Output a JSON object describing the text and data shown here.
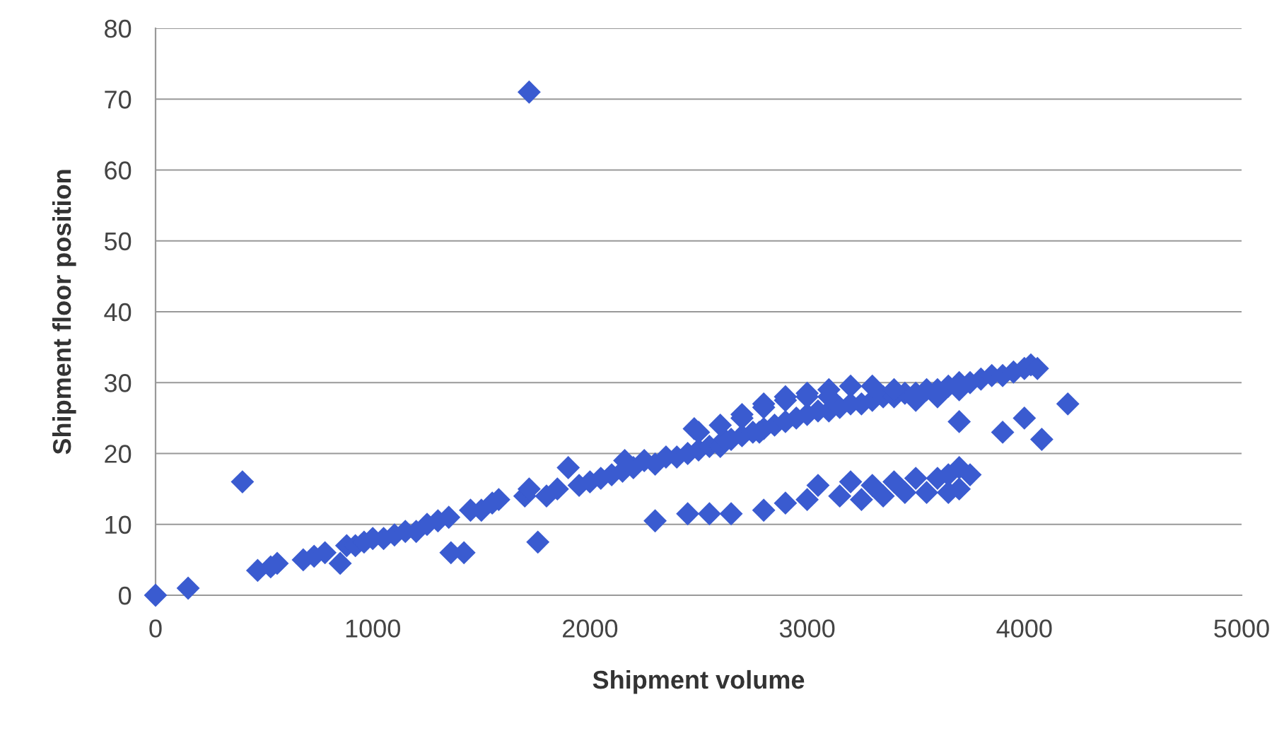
{
  "chart_data": {
    "type": "scatter",
    "xlabel": "Shipment volume",
    "ylabel": "Shipment floor position",
    "marker": "diamond",
    "grid": "y",
    "xlim": [
      0,
      5000
    ],
    "ylim": [
      0,
      80
    ],
    "xticks": [
      0,
      1000,
      2000,
      3000,
      4000,
      5000
    ],
    "yticks": [
      0,
      10,
      20,
      30,
      40,
      50,
      60,
      70,
      80
    ],
    "series": [
      {
        "color": "#3a5bd0",
        "x": [
          0,
          150,
          400,
          1720,
          470,
          530,
          560,
          680,
          730,
          780,
          850,
          880,
          920,
          960,
          1000,
          1050,
          1100,
          1150,
          1200,
          1250,
          1300,
          1350,
          1360,
          1420,
          1450,
          1500,
          1550,
          1580,
          1700,
          1720,
          1760,
          1800,
          1850,
          1900,
          1950,
          2000,
          2050,
          2100,
          2150,
          2160,
          2200,
          2250,
          2300,
          2350,
          2400,
          2450,
          2480,
          2500,
          2550,
          2600,
          2620,
          2650,
          2700,
          2750,
          2780,
          2800,
          2850,
          2900,
          2950,
          3000,
          3050,
          3100,
          3150,
          3200,
          3250,
          3300,
          3350,
          3400,
          3450,
          3500,
          3550,
          3600,
          3650,
          3700,
          3750,
          3800,
          3850,
          3900,
          3950,
          4000,
          4030,
          4060,
          2500,
          2600,
          2700,
          2800,
          2900,
          3000,
          3100,
          3200,
          3300,
          2700,
          2800,
          2900,
          3000,
          3100,
          3400,
          3500,
          3600,
          3700,
          2300,
          2450,
          2550,
          2650,
          2800,
          2900,
          3000,
          3050,
          3150,
          3200,
          3300,
          3400,
          3500,
          3600,
          3650,
          3700,
          3750,
          3250,
          3350,
          3450,
          3550,
          3650,
          3700,
          3700,
          3900,
          4000,
          4080,
          4200
        ],
        "values": [
          0,
          1,
          16,
          71,
          3.5,
          4,
          4.5,
          5,
          5.5,
          6,
          4.5,
          7,
          7,
          7.5,
          8,
          8,
          8.5,
          9,
          9,
          10,
          10.5,
          11,
          6,
          6,
          12,
          12,
          13,
          13.5,
          14,
          15,
          7.5,
          14,
          15,
          18,
          15.5,
          16,
          16.5,
          17,
          17.5,
          19,
          18,
          19,
          18.5,
          19.5,
          19.5,
          20,
          23.5,
          20.5,
          21,
          21,
          22,
          22,
          22.5,
          23,
          23,
          23.5,
          24,
          24.5,
          25,
          25.5,
          26,
          26,
          26.5,
          27,
          27,
          27.5,
          28,
          28,
          28.5,
          28.5,
          29,
          29,
          29.5,
          30,
          30,
          30.5,
          31,
          31,
          31.5,
          32,
          32.5,
          32,
          23,
          24,
          25.5,
          26.5,
          27.5,
          28.5,
          29,
          29.5,
          29.5,
          25,
          27,
          28,
          28,
          28,
          29,
          27.5,
          28,
          29,
          10.5,
          11.5,
          11.5,
          11.5,
          12,
          13,
          13.5,
          15.5,
          14,
          16,
          15.5,
          16,
          16.5,
          16.5,
          17,
          18,
          17,
          13.5,
          14,
          14.5,
          14.5,
          14.5,
          15,
          24.5,
          23,
          25,
          22,
          27
        ]
      }
    ]
  }
}
